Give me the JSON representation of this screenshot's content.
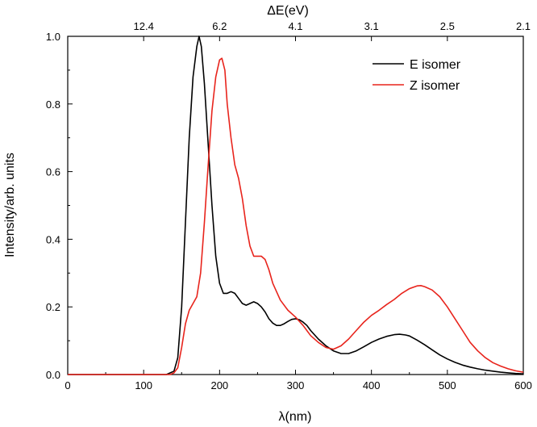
{
  "chart_data": {
    "type": "line",
    "title": "",
    "xlabel": "λ(nm)",
    "ylabel": "Intensity/arb. units",
    "top_xlabel": "ΔE(eV)",
    "xlim": [
      0,
      600
    ],
    "ylim": [
      0,
      1.0
    ],
    "x_ticks": [
      0,
      100,
      200,
      300,
      400,
      500,
      600
    ],
    "y_ticks": [
      0.0,
      0.2,
      0.4,
      0.6,
      0.8,
      1.0
    ],
    "x_tick_labels": [
      "0",
      "100",
      "200",
      "300",
      "400",
      "500",
      "600"
    ],
    "y_tick_labels": [
      "0.0",
      "0.2",
      "0.4",
      "0.6",
      "0.8",
      "1.0"
    ],
    "top_ticks": [
      {
        "label": "12.4",
        "wavelength": 100
      },
      {
        "label": "6.2",
        "wavelength": 200
      },
      {
        "label": "4.1",
        "wavelength": 300
      },
      {
        "label": "3.1",
        "wavelength": 400
      },
      {
        "label": "2.5",
        "wavelength": 500
      },
      {
        "label": "2.1",
        "wavelength": 600
      }
    ],
    "grid": false,
    "legend_position": "top-right",
    "series": [
      {
        "name": "E isomer",
        "color": "#000000",
        "x": [
          0,
          130,
          140,
          145,
          150,
          155,
          160,
          165,
          170,
          173,
          176,
          180,
          185,
          190,
          195,
          200,
          205,
          210,
          215,
          220,
          225,
          230,
          235,
          240,
          245,
          250,
          255,
          260,
          265,
          270,
          275,
          280,
          285,
          290,
          295,
          300,
          305,
          310,
          315,
          320,
          330,
          340,
          350,
          360,
          370,
          380,
          390,
          400,
          410,
          420,
          430,
          437,
          445,
          450,
          460,
          470,
          480,
          490,
          500,
          510,
          520,
          530,
          540,
          550,
          560,
          570,
          580,
          590,
          600
        ],
        "y": [
          0.0,
          0.0,
          0.01,
          0.05,
          0.2,
          0.45,
          0.7,
          0.88,
          0.97,
          1.0,
          0.97,
          0.86,
          0.68,
          0.5,
          0.35,
          0.27,
          0.24,
          0.24,
          0.245,
          0.24,
          0.225,
          0.21,
          0.205,
          0.21,
          0.215,
          0.21,
          0.2,
          0.185,
          0.165,
          0.152,
          0.145,
          0.145,
          0.15,
          0.157,
          0.163,
          0.165,
          0.162,
          0.155,
          0.145,
          0.13,
          0.105,
          0.085,
          0.07,
          0.062,
          0.062,
          0.07,
          0.082,
          0.095,
          0.105,
          0.113,
          0.118,
          0.119,
          0.117,
          0.114,
          0.102,
          0.088,
          0.073,
          0.058,
          0.046,
          0.036,
          0.028,
          0.022,
          0.017,
          0.013,
          0.01,
          0.007,
          0.005,
          0.003,
          0.002
        ]
      },
      {
        "name": "Z isomer",
        "color": "#e8241c",
        "x": [
          0,
          135,
          140,
          145,
          150,
          155,
          160,
          165,
          170,
          175,
          180,
          185,
          190,
          195,
          200,
          203,
          207,
          210,
          215,
          220,
          225,
          230,
          235,
          240,
          245,
          250,
          255,
          260,
          265,
          270,
          280,
          290,
          300,
          310,
          320,
          330,
          340,
          350,
          360,
          370,
          380,
          390,
          400,
          410,
          420,
          430,
          440,
          450,
          460,
          465,
          470,
          480,
          490,
          500,
          510,
          520,
          530,
          540,
          550,
          560,
          570,
          580,
          590,
          600
        ],
        "y": [
          0.0,
          0.0,
          0.005,
          0.02,
          0.08,
          0.15,
          0.19,
          0.21,
          0.23,
          0.3,
          0.45,
          0.62,
          0.78,
          0.88,
          0.93,
          0.935,
          0.9,
          0.8,
          0.7,
          0.62,
          0.58,
          0.52,
          0.44,
          0.38,
          0.35,
          0.35,
          0.35,
          0.34,
          0.31,
          0.27,
          0.22,
          0.19,
          0.17,
          0.145,
          0.115,
          0.095,
          0.08,
          0.075,
          0.085,
          0.105,
          0.13,
          0.155,
          0.175,
          0.19,
          0.207,
          0.222,
          0.24,
          0.254,
          0.262,
          0.263,
          0.26,
          0.25,
          0.23,
          0.2,
          0.165,
          0.13,
          0.095,
          0.07,
          0.05,
          0.035,
          0.025,
          0.017,
          0.011,
          0.007
        ]
      }
    ]
  }
}
